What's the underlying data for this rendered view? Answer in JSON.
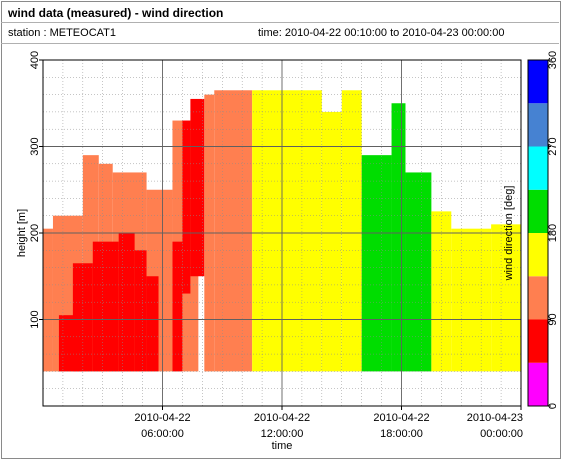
{
  "title": "wind data (measured) - wind direction",
  "station": "station : METEOCAT1",
  "time_range": "time: 2010-04-22 00:10:00 to 2010-04-23 00:00:00",
  "chart_data": {
    "type": "heatmap",
    "xlabel": "time",
    "ylabel": "height [m]",
    "x_range_hours": [
      0,
      24
    ],
    "ylim": [
      0,
      400
    ],
    "x_ticks": [
      {
        "value": 6,
        "line1": "2010-04-22",
        "line2": "06:00:00"
      },
      {
        "value": 12,
        "line1": "2010-04-22",
        "line2": "12:00:00"
      },
      {
        "value": 18,
        "line1": "2010-04-22",
        "line2": "18:00:00"
      },
      {
        "value": 24,
        "line1": "2010-04-23",
        "line2": "00:00:00"
      }
    ],
    "y_ticks": [
      {
        "value": 100,
        "label": "100"
      },
      {
        "value": 200,
        "label": "200"
      },
      {
        "value": 300,
        "label": "300"
      },
      {
        "value": 400,
        "label": "400"
      }
    ],
    "grid": true,
    "colorbar": {
      "label": "wind direction [deg]",
      "range": [
        0,
        360
      ],
      "ticks": [
        {
          "value": 0,
          "label": "0"
        },
        {
          "value": 90,
          "label": "90"
        },
        {
          "value": 180,
          "label": "180"
        },
        {
          "value": 270,
          "label": "270"
        },
        {
          "value": 360,
          "label": "360"
        }
      ],
      "bins": [
        {
          "from": 0,
          "to": 45,
          "color": "#ff00ff"
        },
        {
          "from": 45,
          "to": 90,
          "color": "#ff0000"
        },
        {
          "from": 90,
          "to": 135,
          "color": "#ff7f50"
        },
        {
          "from": 135,
          "to": 180,
          "color": "#ffff00"
        },
        {
          "from": 180,
          "to": 225,
          "color": "#00dd00"
        },
        {
          "from": 225,
          "to": 270,
          "color": "#00ffff"
        },
        {
          "from": 270,
          "to": 315,
          "color": "#4682d2"
        },
        {
          "from": 315,
          "to": 360,
          "color": "#0000ff"
        }
      ]
    },
    "regions": [
      {
        "t0": 0.0,
        "t1": 0.5,
        "h0": 40,
        "h1": 205,
        "dir": 110
      },
      {
        "t0": 0.5,
        "t1": 2.0,
        "h0": 40,
        "h1": 220,
        "dir": 110
      },
      {
        "t0": 2.0,
        "t1": 2.8,
        "h0": 40,
        "h1": 290,
        "dir": 110
      },
      {
        "t0": 2.8,
        "t1": 3.5,
        "h0": 40,
        "h1": 280,
        "dir": 110
      },
      {
        "t0": 3.5,
        "t1": 5.2,
        "h0": 40,
        "h1": 270,
        "dir": 110
      },
      {
        "t0": 5.2,
        "t1": 6.5,
        "h0": 40,
        "h1": 250,
        "dir": 110
      },
      {
        "t0": 6.5,
        "t1": 7.8,
        "h0": 40,
        "h1": 330,
        "dir": 110
      },
      {
        "t0": 0.8,
        "t1": 2.0,
        "h0": 40,
        "h1": 105,
        "dir": 60
      },
      {
        "t0": 1.5,
        "t1": 2.5,
        "h0": 40,
        "h1": 165,
        "dir": 60
      },
      {
        "t0": 2.5,
        "t1": 3.8,
        "h0": 40,
        "h1": 190,
        "dir": 60
      },
      {
        "t0": 3.8,
        "t1": 4.6,
        "h0": 40,
        "h1": 200,
        "dir": 60
      },
      {
        "t0": 4.6,
        "t1": 5.2,
        "h0": 40,
        "h1": 180,
        "dir": 60
      },
      {
        "t0": 5.2,
        "t1": 5.8,
        "h0": 40,
        "h1": 150,
        "dir": 60
      },
      {
        "t0": 6.5,
        "t1": 7.0,
        "h0": 40,
        "h1": 190,
        "dir": 60
      },
      {
        "t0": 7.0,
        "t1": 7.4,
        "h0": 130,
        "h1": 330,
        "dir": 60
      },
      {
        "t0": 7.4,
        "t1": 8.1,
        "h0": 150,
        "h1": 355,
        "dir": 60
      },
      {
        "t0": 8.1,
        "t1": 8.6,
        "h0": 40,
        "h1": 360,
        "dir": 110
      },
      {
        "t0": 8.6,
        "t1": 10.5,
        "h0": 40,
        "h1": 365,
        "dir": 110
      },
      {
        "t0": 10.5,
        "t1": 14.0,
        "h0": 40,
        "h1": 365,
        "dir": 150
      },
      {
        "t0": 14.0,
        "t1": 15.0,
        "h0": 40,
        "h1": 340,
        "dir": 150
      },
      {
        "t0": 15.0,
        "t1": 16.0,
        "h0": 40,
        "h1": 365,
        "dir": 150
      },
      {
        "t0": 16.0,
        "t1": 17.5,
        "h0": 40,
        "h1": 290,
        "dir": 200
      },
      {
        "t0": 17.5,
        "t1": 18.2,
        "h0": 40,
        "h1": 350,
        "dir": 200
      },
      {
        "t0": 18.2,
        "t1": 19.5,
        "h0": 40,
        "h1": 270,
        "dir": 200
      },
      {
        "t0": 19.5,
        "t1": 20.5,
        "h0": 40,
        "h1": 225,
        "dir": 150
      },
      {
        "t0": 20.5,
        "t1": 22.5,
        "h0": 40,
        "h1": 205,
        "dir": 150
      },
      {
        "t0": 22.5,
        "t1": 24.0,
        "h0": 40,
        "h1": 210,
        "dir": 150
      }
    ]
  }
}
